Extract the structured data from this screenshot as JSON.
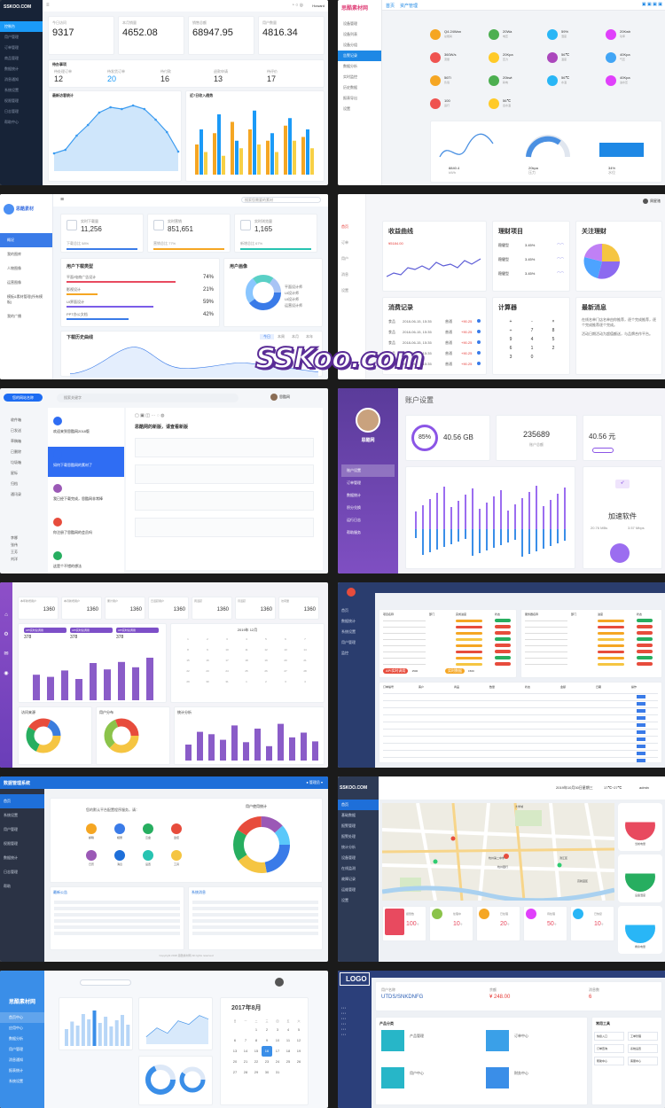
{
  "t1": {
    "logo": "SSKOO.COM",
    "user": "Howard",
    "stats": [
      {
        "label": "今日访问",
        "value": "9317"
      },
      {
        "label": "本月销量",
        "value": "4652.08"
      },
      {
        "label": "销售总额",
        "value": "68947.95"
      },
      {
        "label": "用户数量",
        "value": "4816.34"
      }
    ],
    "todo": {
      "title": "待办事项",
      "items": [
        {
          "label": "待处理订单",
          "value": "12"
        },
        {
          "label": "待发货订单",
          "value": "20"
        },
        {
          "label": "待付款",
          "value": "16"
        },
        {
          "label": "退款申请",
          "value": "13"
        },
        {
          "label": "待评价",
          "value": "17"
        }
      ]
    },
    "chart1": {
      "title": "最新访客统计"
    },
    "chart2": {
      "title": "近7日收入趋势"
    },
    "menu": [
      "控制台",
      "用户管理",
      "订单管理",
      "商品管理",
      "数据统计",
      "消息通知",
      "系统设置",
      "权限管理",
      "日志管理",
      "帮助中心"
    ],
    "line_values": [
      20,
      24,
      40,
      52,
      66,
      72,
      70,
      74,
      70,
      58,
      44,
      22
    ],
    "bar_values": [
      [
        40,
        60,
        30
      ],
      [
        55,
        80,
        25
      ],
      [
        70,
        45,
        35
      ],
      [
        60,
        85,
        40
      ],
      [
        45,
        55,
        30
      ],
      [
        65,
        75,
        45
      ],
      [
        50,
        60,
        35
      ]
    ],
    "colors": {
      "accent": "#1b9af7",
      "dark": "#172337"
    }
  },
  "t2": {
    "logo": "思酷素材网",
    "tabs": [
      "首页",
      "资产管理"
    ],
    "menu": [
      "设备管理",
      "设备列表",
      "设备分组",
      "告警记录",
      "数据分析",
      "实时监控",
      "历史数据",
      "报表导出",
      "设置"
    ],
    "metrics": [
      {
        "v": "Q4.24Wan",
        "l": "总能耗"
      },
      {
        "v": "20Wa",
        "l": "电压"
      },
      {
        "v": "59%",
        "l": "湿度"
      },
      {
        "v": "20Kwh",
        "l": "功率"
      },
      {
        "v": "360W/s",
        "l": "流量"
      },
      {
        "v": "20Kpa",
        "l": "压力"
      },
      {
        "v": "56℃",
        "l": "温度"
      },
      {
        "v": "40Kpa",
        "l": "气压"
      },
      {
        "v": "56Ti",
        "l": "负载"
      },
      {
        "v": "20kwt",
        "l": "耗电"
      },
      {
        "v": "56℃",
        "l": "水温"
      },
      {
        "v": "40Kpa",
        "l": "进水压"
      },
      {
        "v": "100",
        "l": "运行"
      },
      {
        "v": "56℃",
        "l": "出水温"
      }
    ],
    "gauges": [
      {
        "v": "8840.4",
        "u": "kWh"
      },
      {
        "v": "20kpa",
        "u": "压力"
      },
      {
        "v": "34%",
        "u": "水位"
      }
    ]
  },
  "t3": {
    "logo": "思酷素材",
    "search": "搜索您需要的素材",
    "menu": [
      "概况",
      "我的图库",
      "人物图像",
      "运营图像",
      "模板&素材管理(所有模板)",
      "我的广播"
    ],
    "kpi": [
      {
        "label": "实时下载量",
        "value": "11,256",
        "sub": "下载总比 58%"
      },
      {
        "label": "实时营销",
        "value": "851,651",
        "sub": "营销总比 77%"
      },
      {
        "label": "实时浏览量",
        "value": "1,165",
        "sub": "新增总比 67%"
      }
    ],
    "type_title": "用户下载类型",
    "types": [
      {
        "l": "平面/电商广告设计",
        "v": "74%"
      },
      {
        "l": "影视设计",
        "v": "21%"
      },
      {
        "l": "UI界面设计",
        "v": "59%"
      },
      {
        "l": "PPT办公文档",
        "v": "42%"
      }
    ],
    "portrait_title": "用户画像",
    "legend": [
      "平面设计师",
      "UI设计师",
      "UI设计师",
      "运营设计师"
    ],
    "trend_title": "下载历史曲线",
    "trend_tabs": [
      "今日",
      "本周",
      "本月",
      "本年"
    ]
  },
  "t4": {
    "user": "周星驰",
    "menu": [
      "首页",
      "订单",
      "用户",
      "消息",
      "设置"
    ],
    "income": {
      "title": "收益曲线",
      "value": "¥5184.00"
    },
    "invest": {
      "title": "理财项目",
      "rows": [
        {
          "l": "稳健型",
          "v": "3.45%"
        },
        {
          "l": "稳健型",
          "v": "3.45%"
        },
        {
          "l": "稳健型",
          "v": "3.45%"
        }
      ]
    },
    "focus": {
      "title": "关注理财"
    },
    "record": {
      "title": "消费记录",
      "rows": [
        {
          "a": "食品",
          "d": "2018-06-15, 15:35",
          "s": "普通",
          "m": "+90.25"
        },
        {
          "a": "食品",
          "d": "2018-06-15, 15:35",
          "s": "普通",
          "m": "+90.25"
        },
        {
          "a": "食品",
          "d": "2018-06-15, 15:35",
          "s": "普通",
          "m": "+90.25"
        },
        {
          "a": "食品",
          "d": "2018-06-15, 15:35",
          "s": "普通",
          "m": "+90.25"
        },
        {
          "a": "食品",
          "d": "2018-06-15, 15:35",
          "s": "普通",
          "m": "+90.25"
        }
      ]
    },
    "calc": {
      "title": "计算器",
      "keys": [
        "+",
        "-",
        "×",
        "÷",
        "7",
        "8",
        "9",
        "4",
        "5",
        "6",
        "1",
        "2",
        "3",
        "0"
      ]
    },
    "news": {
      "title": "最新消息",
      "text1": "在线名单门店名单由你推荐，逐个完成推荐，逐个完成推荐逐个完成。",
      "text2": "活动日期活动为超值额送，与品牌合作平台。"
    }
  },
  "t5": {
    "brand": "您的网站名称",
    "search": "搜索关键字",
    "user": "思酷网",
    "nav": [
      "收件箱",
      "已发送",
      "草稿箱",
      "已删除",
      "垃圾箱",
      "星标",
      "归档",
      "通讯录"
    ],
    "mails": [
      {
        "t": "欢迎来到思酷网2018版",
        "c": "#2f6df3"
      },
      {
        "t": "如何下载思酷网的素材了",
        "c": "#2f6df3",
        "sel": true
      },
      {
        "t": "我已经下载完成，思酷网非常棒",
        "c": "#9b59b6"
      },
      {
        "t": "你注册了思酷网的会员吗",
        "c": "#e74c3c"
      },
      {
        "t": "这是个不错的想法",
        "c": "#27ae60"
      }
    ],
    "open_title": "思酷网的新版，请查看新版",
    "contacts": [
      "李娜",
      "张伟",
      "王芳",
      "刘洋"
    ]
  },
  "t6": {
    "user": "思酷网",
    "title": "账户设置",
    "side": [
      "账户设置",
      "订单管理",
      "数据统计",
      "积分兑换",
      "运行日志",
      "帮助服务"
    ],
    "pct": "85%",
    "storage": "40.56 GB",
    "count": "235689",
    "count_label": "账户总额",
    "balance": "40.56 元",
    "accel": "加速软件",
    "speed1": "20.76 MBs",
    "speed2": "3.57 Mbps"
  },
  "t7": {
    "stats": [
      {
        "l": "本年新增用户",
        "v": "1360"
      },
      {
        "l": "本月新增用户",
        "v": "1360"
      },
      {
        "l": "累计用户",
        "v": "1360"
      },
      {
        "l": "日活跃用户",
        "v": "1360"
      },
      {
        "l": "周活跃",
        "v": "1360"
      },
      {
        "l": "月活跃",
        "v": "1360"
      },
      {
        "l": "访问量",
        "v": "1360"
      }
    ],
    "api": [
      {
        "l": "API实时总调用",
        "v": "378"
      },
      {
        "l": "API实时总调用",
        "v": "378"
      },
      {
        "l": "API实时总调用",
        "v": "378"
      }
    ],
    "cal": "2019年 12月",
    "bars": [
      48,
      44,
      56,
      40,
      70,
      58,
      72,
      62,
      80
    ],
    "pie1": "访问来源",
    "pie2": "用户分布",
    "bar2": "统计分析",
    "bars2": [
      40,
      72,
      66,
      52,
      88,
      46,
      80,
      36,
      92,
      58,
      70,
      48
    ]
  },
  "t8": {
    "menu": [
      "首页",
      "数据统计",
      "系统设置",
      "用户管理",
      "监控"
    ],
    "col1": [
      "项目名称",
      "部门",
      "完成进度",
      "状态"
    ],
    "col2": [
      "服务器名称",
      "部门",
      "进度",
      "状态"
    ],
    "api": [
      {
        "l": "API实时调用",
        "v": "1500"
      },
      {
        "l": "实时数据",
        "v": "1500"
      }
    ],
    "table_heads": [
      "订单编号",
      "客户",
      "商品",
      "数量",
      "状态",
      "金额",
      "日期",
      "操作"
    ]
  },
  "t9": {
    "title": "数据管理系统",
    "menu": [
      "首页",
      "系统设置",
      "用户管理",
      "权限管理",
      "数据统计",
      "日志管理",
      "帮助"
    ],
    "center_title": "您的默认平台配置程序服务，请：",
    "apps": [
      "邮箱",
      "相册",
      "云盘",
      "监控",
      "日历",
      "消息",
      "设置",
      "工具"
    ],
    "donut_title": "用户使用统计",
    "news1": "最新公告",
    "news2": "系统消息",
    "footer": "Copyright 2018 思酷素材网 All rights reserved"
  },
  "t10": {
    "logo": "SSKOO.COM",
    "date": "2019年10月30日星期三",
    "weather": "17℃~27℃",
    "user": "admin",
    "menu": [
      "首页",
      "基础数据",
      "报警管理",
      "报警处理",
      "统计分析",
      "设备管理",
      "在线监测",
      "故障记录",
      "运维管理",
      "设置"
    ],
    "stats": [
      {
        "l": "报警数",
        "v": "100",
        "u": "个"
      },
      {
        "l": "处理中",
        "v": "10",
        "u": "个"
      },
      {
        "l": "已处理",
        "v": "20",
        "u": "个"
      },
      {
        "l": "待处理",
        "v": "50",
        "u": "个"
      },
      {
        "l": "已恢复",
        "v": "10",
        "u": "个"
      }
    ],
    "map_labels": [
      "大学城",
      "杭州第二中学",
      "杭州银行",
      "滨江区",
      "高新园区"
    ],
    "gauges": [
      "当前电量",
      "设备湿度",
      "剩余电量"
    ]
  },
  "t11": {
    "logo": "思酷素材网",
    "menu": [
      "首页中心",
      "应用中心",
      "数据分析",
      "用户管理",
      "消息通知",
      "报表统计",
      "系统设置"
    ],
    "cal_title": "2017年8月",
    "week": [
      "日",
      "一",
      "二",
      "三",
      "四",
      "五",
      "六"
    ],
    "days": [
      "",
      "",
      "1",
      "2",
      "3",
      "4",
      "5",
      "6",
      "7",
      "8",
      "9",
      "10",
      "11",
      "12",
      "13",
      "14",
      "15",
      "16",
      "17",
      "18",
      "19",
      "20",
      "21",
      "22",
      "23",
      "24",
      "25",
      "26",
      "27",
      "28",
      "29",
      "30",
      "31"
    ],
    "today": "16",
    "bars": [
      38,
      55,
      46,
      72,
      60,
      80,
      52,
      66,
      44,
      58,
      70,
      48
    ]
  },
  "t12": {
    "logo": "LOGO",
    "acct1": {
      "l": "用户名称",
      "v": "UTDS/SNKDNFG"
    },
    "acct2": {
      "l": "余额",
      "v": "¥ 248.00"
    },
    "acct3": {
      "l": "消息数",
      "v": "6"
    },
    "title": "产品分类",
    "quick": "常用工具",
    "tools": [
      "快捷入口",
      "工单管理",
      "订单查询",
      "系统设置",
      "帮助中心",
      "客服中心"
    ],
    "cards": [
      "产品管理",
      "订单中心",
      "用户中心",
      "财务中心"
    ]
  }
}
